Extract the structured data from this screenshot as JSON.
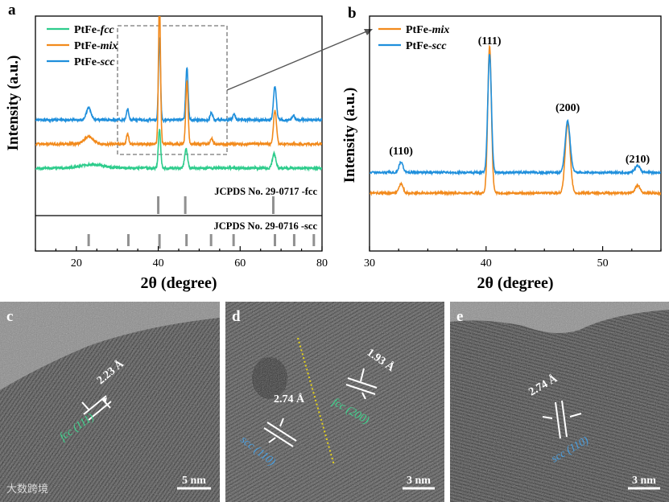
{
  "panels": {
    "a": {
      "letter": "a",
      "ref_fcc": "JCPDS No. 29-0717 -fcc",
      "ref_scc": "JCPDS No. 29-0716 -scc"
    },
    "b": {
      "letter": "b"
    },
    "c": {
      "letter": "c",
      "d_spacing": "2.23 Å",
      "phase_label": "fcc (111)",
      "scale_bar": "5 nm"
    },
    "d": {
      "letter": "d",
      "d_spacing_1": "2.74 Å",
      "phase_label_1": "scc (110)",
      "d_spacing_2": "1.93 Å",
      "phase_label_2": "fcc (200)",
      "scale_bar": "3 nm"
    },
    "e": {
      "letter": "e",
      "d_spacing": "2.74 Å",
      "phase_label": "scc (110)",
      "scale_bar": "3 nm"
    }
  },
  "watermark": "大数跨境",
  "colors": {
    "fcc": "#2ecc8c",
    "mix": "#f28a1c",
    "scc": "#1f8fdc",
    "ref_bar": "#909090",
    "phase_green": "#3fd68f",
    "phase_blue": "#4a9fe0",
    "guide_line": "#e6d21c"
  },
  "chart_data": [
    {
      "type": "line",
      "title": "",
      "xlabel": "2θ (degree)",
      "ylabel": "Intensity (a.u.)",
      "xlim": [
        10,
        80
      ],
      "xticks": [
        20,
        40,
        60,
        80
      ],
      "legend": [
        "PtFe-fcc",
        "PtFe-mix",
        "PtFe-scc"
      ],
      "series": [
        {
          "name": "PtFe-scc",
          "color": "#1f8fdc",
          "baseline": 2.2,
          "noise": 0.05,
          "peaks": [
            [
              23.0,
              0.5,
              0.8
            ],
            [
              32.5,
              0.45,
              0.4
            ],
            [
              40.3,
              3.4,
              0.35
            ],
            [
              47.0,
              2.2,
              0.4
            ],
            [
              53.0,
              0.3,
              0.4
            ],
            [
              58.5,
              0.25,
              0.4
            ],
            [
              68.5,
              1.4,
              0.5
            ],
            [
              73.0,
              0.2,
              0.4
            ]
          ]
        },
        {
          "name": "PtFe-mix",
          "color": "#f28a1c",
          "baseline": 1.2,
          "noise": 0.05,
          "peaks": [
            [
              23.0,
              0.3,
              1.5
            ],
            [
              32.5,
              0.4,
              0.4
            ],
            [
              40.3,
              6.0,
              0.35
            ],
            [
              47.0,
              2.6,
              0.4
            ],
            [
              53.0,
              0.25,
              0.4
            ],
            [
              68.5,
              1.4,
              0.5
            ]
          ]
        },
        {
          "name": "PtFe-fcc",
          "color": "#2ecc8c",
          "baseline": 0.2,
          "noise": 0.05,
          "peaks": [
            [
              24.0,
              0.15,
              4.0
            ],
            [
              40.3,
              1.6,
              0.4
            ],
            [
              46.8,
              0.8,
              0.5
            ],
            [
              68.3,
              0.6,
              0.6
            ]
          ]
        }
      ],
      "reference_fcc": {
        "label": "JCPDS No. 29-0717 -fcc",
        "positions": [
          40.0,
          46.6,
          68.1
        ]
      },
      "reference_scc": {
        "label": "JCPDS No. 29-0716 -scc",
        "positions": [
          23.0,
          32.7,
          40.3,
          46.9,
          52.9,
          58.4,
          68.5,
          73.2,
          78.0
        ]
      }
    },
    {
      "type": "line",
      "title": "",
      "xlabel": "2θ (degree)",
      "ylabel": "Intensity (a.u.)",
      "xlim": [
        30,
        55
      ],
      "xticks": [
        30,
        40,
        50
      ],
      "legend": [
        "PtFe-mix",
        "PtFe-scc"
      ],
      "series": [
        {
          "name": "PtFe-mix",
          "color": "#f28a1c",
          "baseline": 0.0,
          "noise": 0.04,
          "peaks": [
            [
              32.7,
              0.35,
              0.25
            ],
            [
              40.3,
              5.7,
              0.22
            ],
            [
              47.0,
              2.7,
              0.3
            ],
            [
              53.0,
              0.3,
              0.3
            ]
          ]
        },
        {
          "name": "PtFe-scc",
          "color": "#1f8fdc",
          "baseline": 0.8,
          "noise": 0.04,
          "peaks": [
            [
              32.7,
              0.4,
              0.25
            ],
            [
              40.3,
              4.6,
              0.22
            ],
            [
              47.0,
              2.0,
              0.3
            ],
            [
              53.0,
              0.25,
              0.3
            ]
          ]
        }
      ],
      "annotations": [
        {
          "text": "(110)",
          "x": 32.7
        },
        {
          "text": "(111)",
          "x": 40.3
        },
        {
          "text": "(200)",
          "x": 47.0
        },
        {
          "text": "(210)",
          "x": 53.0
        }
      ]
    }
  ]
}
